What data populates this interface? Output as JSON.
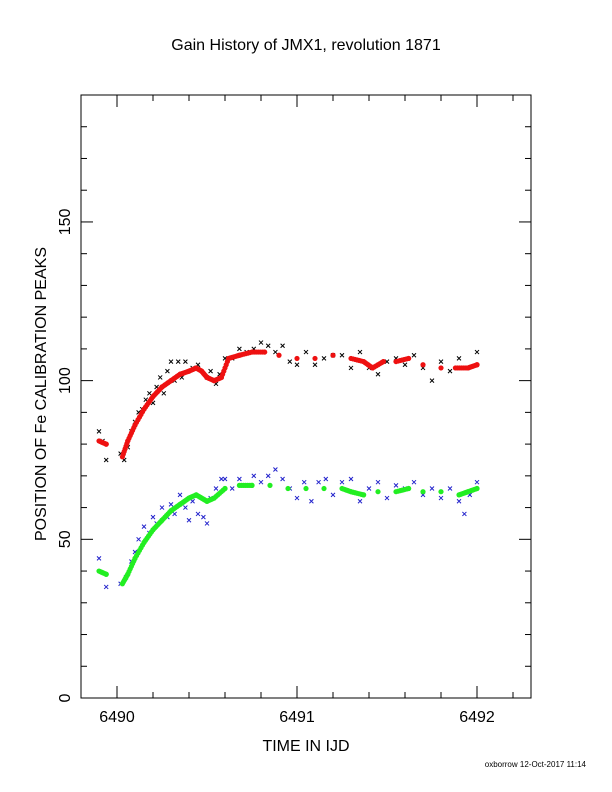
{
  "chart_data": {
    "type": "scatter",
    "title": "Gain History of JMX1, revolution 1871",
    "xlabel": "TIME IN IJD",
    "ylabel": "POSITION OF Fe CALIBRATION PEAKS",
    "footer": "oxborrow 12-Oct-2017 11:14",
    "xlim": [
      6489.8,
      6492.3
    ],
    "ylim": [
      0,
      190
    ],
    "x_ticks": [
      6490,
      6491,
      6492
    ],
    "y_ticks": [
      0,
      50,
      100,
      150
    ],
    "grid": false,
    "legend": "none",
    "series": [
      {
        "color": "#000000",
        "marker": "x",
        "points": [
          [
            6489.9,
            84
          ],
          [
            6489.92,
            81
          ],
          [
            6489.94,
            75
          ],
          [
            6490.02,
            77
          ],
          [
            6490.04,
            75
          ],
          [
            6490.06,
            79
          ],
          [
            6490.08,
            84
          ],
          [
            6490.1,
            87
          ],
          [
            6490.12,
            90
          ],
          [
            6490.14,
            91
          ],
          [
            6490.16,
            94
          ],
          [
            6490.18,
            96
          ],
          [
            6490.2,
            93
          ],
          [
            6490.22,
            98
          ],
          [
            6490.24,
            101
          ],
          [
            6490.26,
            96
          ],
          [
            6490.28,
            103
          ],
          [
            6490.3,
            106
          ],
          [
            6490.32,
            100
          ],
          [
            6490.34,
            106
          ],
          [
            6490.36,
            101
          ],
          [
            6490.38,
            106
          ],
          [
            6490.42,
            104
          ],
          [
            6490.45,
            105
          ],
          [
            6490.5,
            101
          ],
          [
            6490.52,
            103
          ],
          [
            6490.55,
            99
          ],
          [
            6490.57,
            102
          ],
          [
            6490.6,
            107
          ],
          [
            6490.64,
            107
          ],
          [
            6490.68,
            110
          ],
          [
            6490.72,
            109
          ],
          [
            6490.76,
            110
          ],
          [
            6490.8,
            112
          ],
          [
            6490.84,
            111
          ],
          [
            6490.88,
            109
          ],
          [
            6490.92,
            111
          ],
          [
            6490.96,
            106
          ],
          [
            6491.0,
            105
          ],
          [
            6491.05,
            109
          ],
          [
            6491.1,
            105
          ],
          [
            6491.15,
            107
          ],
          [
            6491.2,
            108
          ],
          [
            6491.25,
            108
          ],
          [
            6491.3,
            104
          ],
          [
            6491.35,
            109
          ],
          [
            6491.4,
            104
          ],
          [
            6491.45,
            102
          ],
          [
            6491.5,
            106
          ],
          [
            6491.55,
            107
          ],
          [
            6491.6,
            105
          ],
          [
            6491.65,
            108
          ],
          [
            6491.7,
            104
          ],
          [
            6491.75,
            100
          ],
          [
            6491.8,
            106
          ],
          [
            6491.85,
            103
          ],
          [
            6491.9,
            107
          ],
          [
            6491.95,
            104
          ],
          [
            6492.0,
            109
          ]
        ]
      },
      {
        "color": "#ee1111",
        "marker": "dot",
        "curve": [
          [
            6489.9,
            81
          ],
          [
            6489.94,
            80
          ],
          [
            6490.03,
            76
          ],
          [
            6490.06,
            81
          ],
          [
            6490.1,
            86
          ],
          [
            6490.15,
            91
          ],
          [
            6490.2,
            95
          ],
          [
            6490.25,
            98
          ],
          [
            6490.3,
            100
          ],
          [
            6490.35,
            102
          ],
          [
            6490.4,
            103
          ],
          [
            6490.44,
            104
          ],
          [
            6490.47,
            103
          ],
          [
            6490.5,
            101
          ],
          [
            6490.54,
            100
          ],
          [
            6490.58,
            101
          ],
          [
            6490.62,
            107
          ],
          [
            6490.68,
            108
          ],
          [
            6490.75,
            109
          ],
          [
            6490.82,
            109
          ],
          [
            6490.9,
            108
          ],
          [
            6491.0,
            107
          ],
          [
            6491.1,
            107
          ],
          [
            6491.2,
            108
          ],
          [
            6491.3,
            107
          ],
          [
            6491.37,
            106
          ],
          [
            6491.42,
            104
          ],
          [
            6491.48,
            106
          ],
          [
            6491.55,
            106
          ],
          [
            6491.62,
            107
          ],
          [
            6491.7,
            105
          ],
          [
            6491.8,
            104
          ],
          [
            6491.88,
            104
          ],
          [
            6491.95,
            104
          ],
          [
            6492.0,
            105
          ]
        ]
      },
      {
        "color": "#2222cc",
        "marker": "x",
        "points": [
          [
            6489.9,
            44
          ],
          [
            6489.94,
            35
          ],
          [
            6490.02,
            36
          ],
          [
            6490.05,
            38
          ],
          [
            6490.08,
            43
          ],
          [
            6490.1,
            46
          ],
          [
            6490.12,
            50
          ],
          [
            6490.15,
            54
          ],
          [
            6490.18,
            52
          ],
          [
            6490.2,
            57
          ],
          [
            6490.22,
            55
          ],
          [
            6490.25,
            60
          ],
          [
            6490.28,
            57
          ],
          [
            6490.3,
            61
          ],
          [
            6490.32,
            58
          ],
          [
            6490.35,
            64
          ],
          [
            6490.38,
            60
          ],
          [
            6490.4,
            56
          ],
          [
            6490.42,
            62
          ],
          [
            6490.45,
            58
          ],
          [
            6490.48,
            57
          ],
          [
            6490.5,
            55
          ],
          [
            6490.52,
            63
          ],
          [
            6490.55,
            66
          ],
          [
            6490.58,
            69
          ],
          [
            6490.6,
            69
          ],
          [
            6490.64,
            66
          ],
          [
            6490.68,
            69
          ],
          [
            6490.72,
            67
          ],
          [
            6490.76,
            70
          ],
          [
            6490.8,
            68
          ],
          [
            6490.84,
            70
          ],
          [
            6490.88,
            72
          ],
          [
            6490.92,
            69
          ],
          [
            6490.96,
            66
          ],
          [
            6491.0,
            63
          ],
          [
            6491.04,
            68
          ],
          [
            6491.08,
            62
          ],
          [
            6491.12,
            68
          ],
          [
            6491.16,
            69
          ],
          [
            6491.2,
            64
          ],
          [
            6491.25,
            68
          ],
          [
            6491.3,
            69
          ],
          [
            6491.35,
            62
          ],
          [
            6491.4,
            66
          ],
          [
            6491.45,
            68
          ],
          [
            6491.5,
            63
          ],
          [
            6491.55,
            67
          ],
          [
            6491.6,
            66
          ],
          [
            6491.65,
            68
          ],
          [
            6491.7,
            64
          ],
          [
            6491.75,
            66
          ],
          [
            6491.8,
            63
          ],
          [
            6491.85,
            66
          ],
          [
            6491.9,
            62
          ],
          [
            6491.93,
            58
          ],
          [
            6491.96,
            64
          ],
          [
            6492.0,
            68
          ]
        ]
      },
      {
        "color": "#22ee22",
        "marker": "dot",
        "curve": [
          [
            6489.9,
            40
          ],
          [
            6489.94,
            39
          ],
          [
            6490.03,
            36
          ],
          [
            6490.06,
            39
          ],
          [
            6490.1,
            44
          ],
          [
            6490.15,
            49
          ],
          [
            6490.2,
            53
          ],
          [
            6490.25,
            56
          ],
          [
            6490.3,
            59
          ],
          [
            6490.35,
            61
          ],
          [
            6490.4,
            63
          ],
          [
            6490.44,
            64
          ],
          [
            6490.47,
            63
          ],
          [
            6490.5,
            62
          ],
          [
            6490.54,
            63
          ],
          [
            6490.6,
            66
          ],
          [
            6490.68,
            67
          ],
          [
            6490.75,
            67
          ],
          [
            6490.85,
            67
          ],
          [
            6490.95,
            66
          ],
          [
            6491.05,
            66
          ],
          [
            6491.15,
            66
          ],
          [
            6491.25,
            66
          ],
          [
            6491.3,
            65
          ],
          [
            6491.37,
            64
          ],
          [
            6491.45,
            65
          ],
          [
            6491.55,
            65
          ],
          [
            6491.62,
            66
          ],
          [
            6491.7,
            65
          ],
          [
            6491.8,
            65
          ],
          [
            6491.9,
            64
          ],
          [
            6491.95,
            65
          ],
          [
            6492.0,
            66
          ]
        ]
      }
    ]
  }
}
